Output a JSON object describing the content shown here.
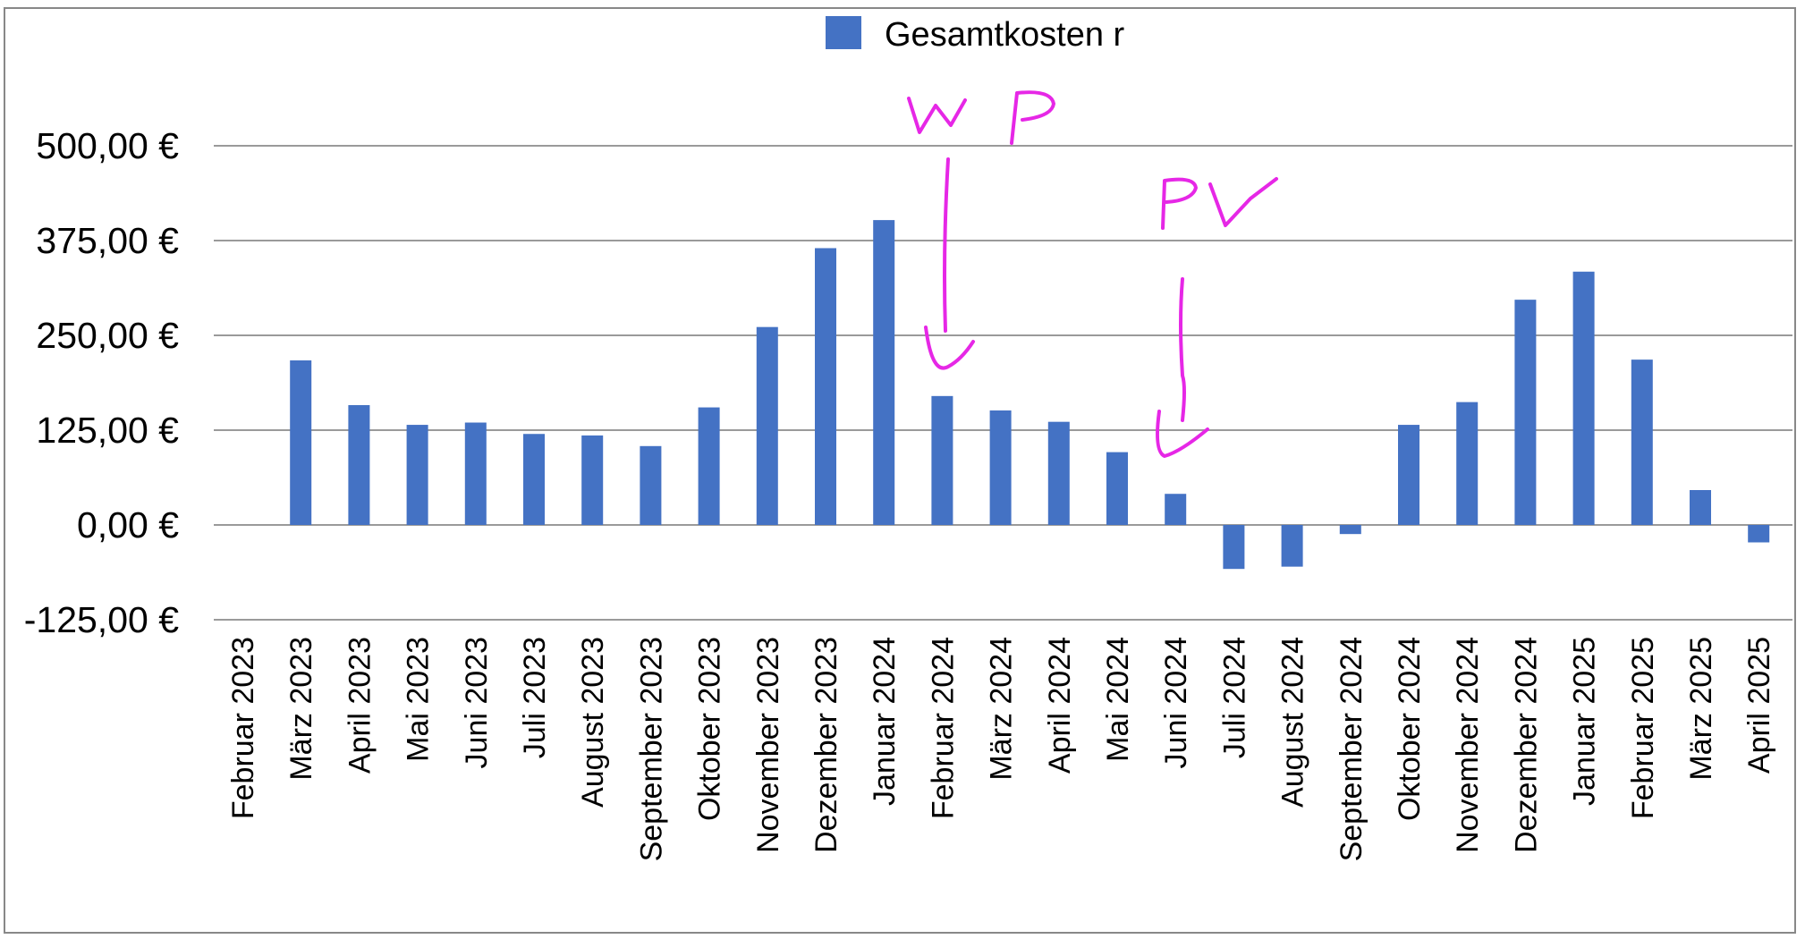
{
  "chart_data": {
    "type": "bar",
    "categories": [
      "Februar 2023",
      "März 2023",
      "April 2023",
      "Mai 2023",
      "Juni 2023",
      "Juli 2023",
      "August 2023",
      "September 2023",
      "Oktober 2023",
      "November 2023",
      "Dezember 2023",
      "Januar 2024",
      "Februar 2024",
      "März 2024",
      "April 2024",
      "Mai 2024",
      "Juni 2024",
      "Juli 2024",
      "August 2024",
      "September 2024",
      "Oktober 2024",
      "November 2024",
      "Dezember 2024",
      "Januar 2025",
      "Februar 2025",
      "März 2025",
      "April 2025"
    ],
    "series": [
      {
        "name": "Gesamtkosten r",
        "values": [
          0,
          217,
          158,
          132,
          135,
          120,
          118,
          104,
          155,
          261,
          365,
          402,
          170,
          151,
          136,
          96,
          41,
          -58,
          -55,
          -12,
          132,
          162,
          297,
          334,
          218,
          46,
          -23
        ]
      }
    ],
    "ylim": [
      -125,
      500
    ],
    "yticks": [
      "-125,00 €",
      "0,00 €",
      "125,00 €",
      "250,00 €",
      "375,00 €",
      "500,00 €"
    ],
    "ytick_values": [
      -125,
      0,
      125,
      250,
      375,
      500
    ],
    "grid": true,
    "legend_position": "top",
    "bar_color": "#4472c4",
    "annotations": [
      {
        "text": "WP",
        "category": "Februar 2024",
        "color": "#e627e6",
        "style": "handwritten arrow"
      },
      {
        "text": "PV",
        "category": "Juni 2024",
        "color": "#e627e6",
        "style": "handwritten arrow"
      }
    ]
  }
}
